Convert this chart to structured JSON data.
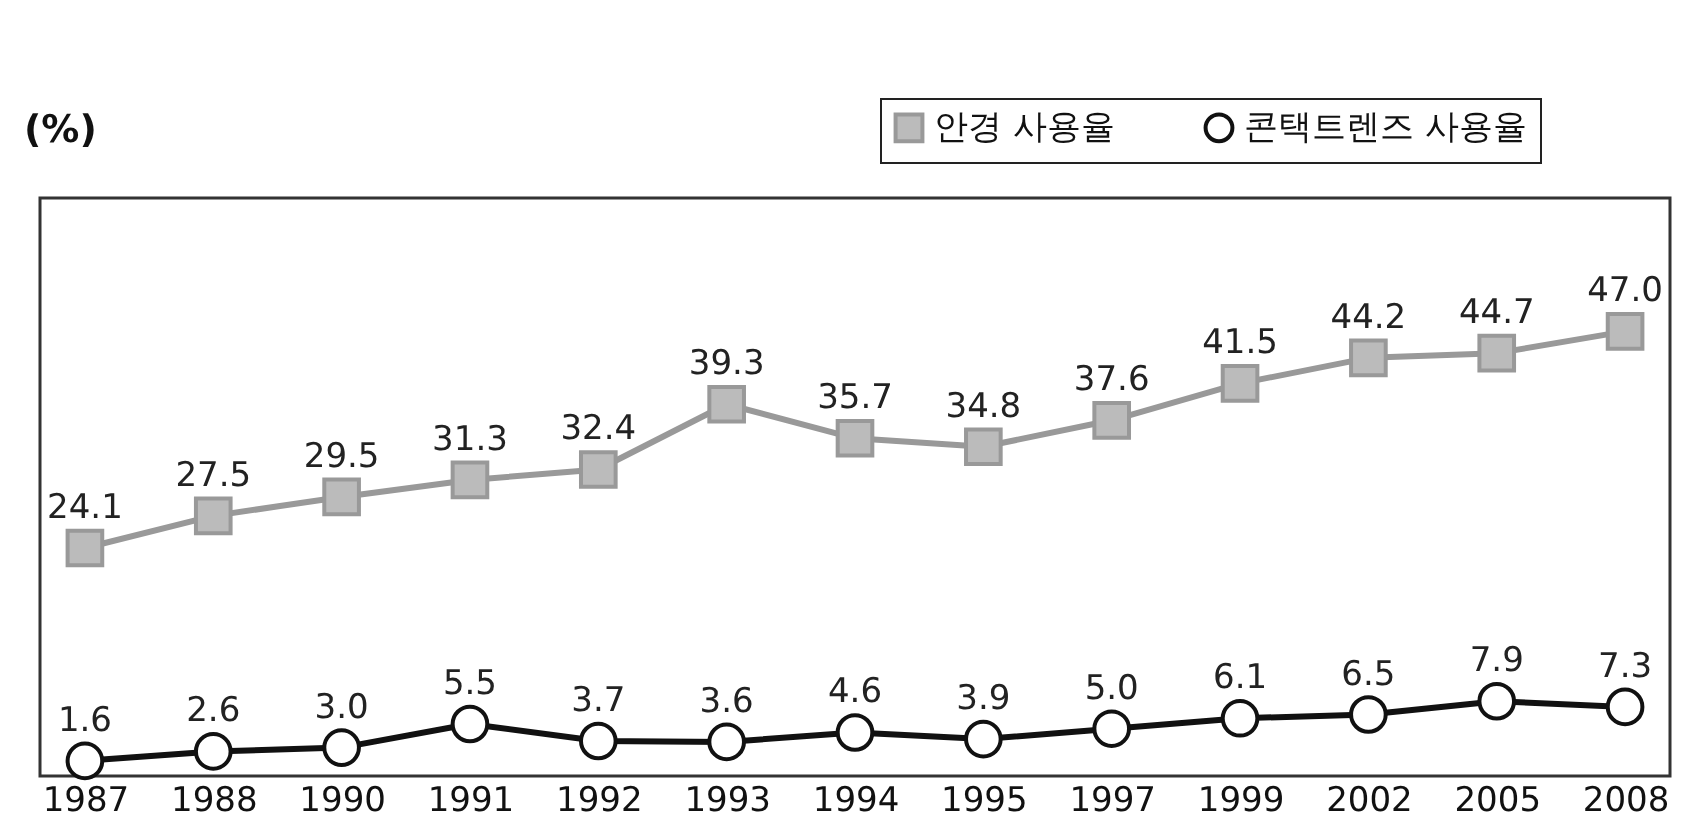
{
  "chart_data": {
    "type": "line",
    "annotations": [
      "(%)"
    ],
    "categories": [
      "1987",
      "1988",
      "1990",
      "1991",
      "1992",
      "1993",
      "1994",
      "1995",
      "1997",
      "1999",
      "2002",
      "2005",
      "2008"
    ],
    "series": [
      {
        "name": "안경 사용율",
        "color": "#999999",
        "marker": "square",
        "values": [
          24.1,
          27.5,
          29.5,
          31.3,
          32.4,
          39.3,
          35.7,
          34.8,
          37.6,
          41.5,
          44.2,
          44.7,
          47.0
        ],
        "value_labels": [
          "24.1",
          "27.5",
          "29.5",
          "31.3",
          "32.4",
          "39.3",
          "35.7",
          "34.8",
          "37.6",
          "41.5",
          "44.2",
          "44.7",
          "47.0"
        ]
      },
      {
        "name": "콘택트렌즈 사용율",
        "color": "#111111",
        "marker": "circle",
        "values": [
          1.6,
          2.6,
          3.0,
          5.5,
          3.7,
          3.6,
          4.6,
          3.9,
          5.0,
          6.1,
          6.5,
          7.9,
          7.3
        ],
        "value_labels": [
          "1.6",
          "2.6",
          "3.0",
          "5.5",
          "3.7",
          "3.6",
          "4.6",
          "3.9",
          "5.0",
          "6.1",
          "6.5",
          "7.9",
          "7.3"
        ]
      }
    ],
    "legend": "top right",
    "grid": false
  }
}
